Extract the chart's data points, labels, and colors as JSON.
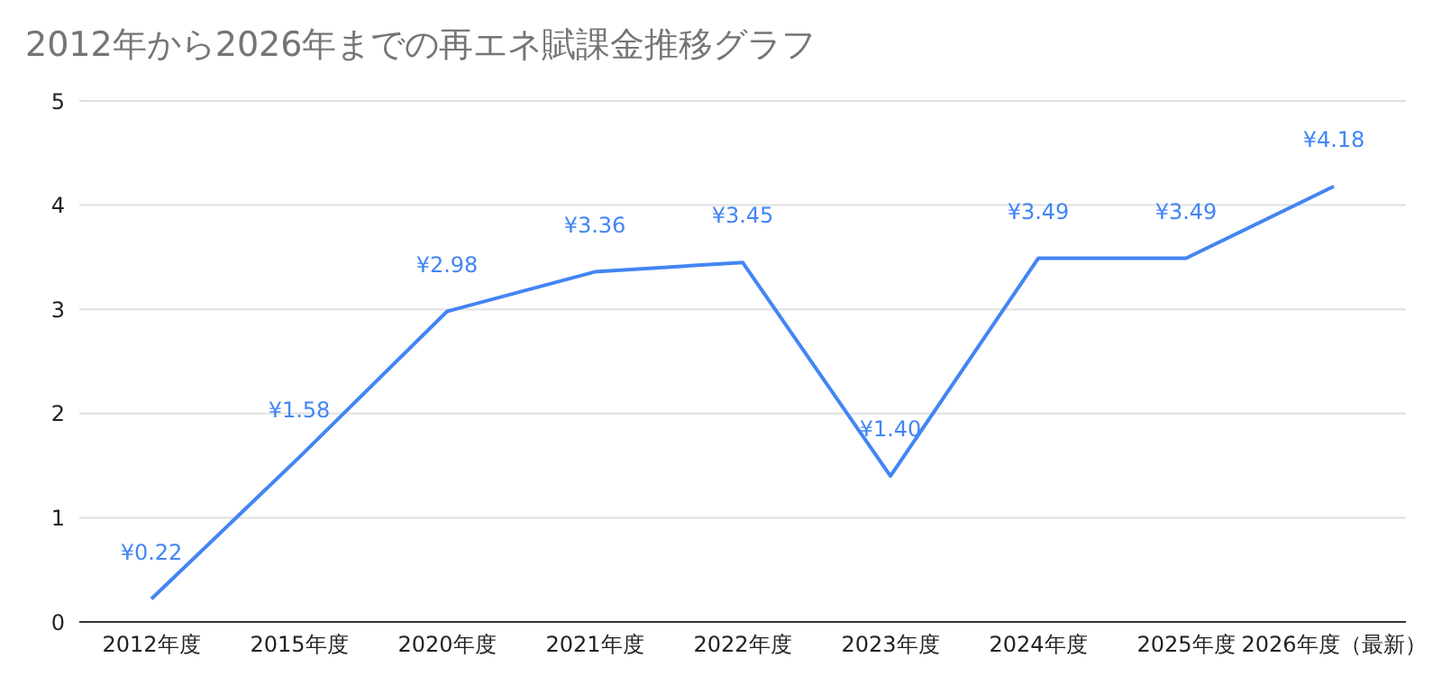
{
  "chart_data": {
    "type": "line",
    "title": "2012年から2026年までの再エネ賦課金推移グラフ",
    "categories": [
      "2012年度",
      "2015年度",
      "2020年度",
      "2021年度",
      "2022年度",
      "2023年度",
      "2024年度",
      "2025年度",
      "2026年度（最新）"
    ],
    "series": [
      {
        "color": "#4285f4",
        "values": [
          0.22,
          1.58,
          2.98,
          3.36,
          3.45,
          1.4,
          3.49,
          3.49,
          4.18
        ],
        "value_labels": [
          "¥0.22",
          "¥1.58",
          "¥2.98",
          "¥3.36",
          "¥3.45",
          "¥1.40",
          "¥3.49",
          "¥3.49",
          "¥4.18"
        ]
      }
    ],
    "ylim": [
      0,
      5
    ],
    "yticks": [
      0,
      1,
      2,
      3,
      4,
      5
    ],
    "grid": "y",
    "legend": false,
    "marker": "none",
    "line_style": "solid"
  }
}
